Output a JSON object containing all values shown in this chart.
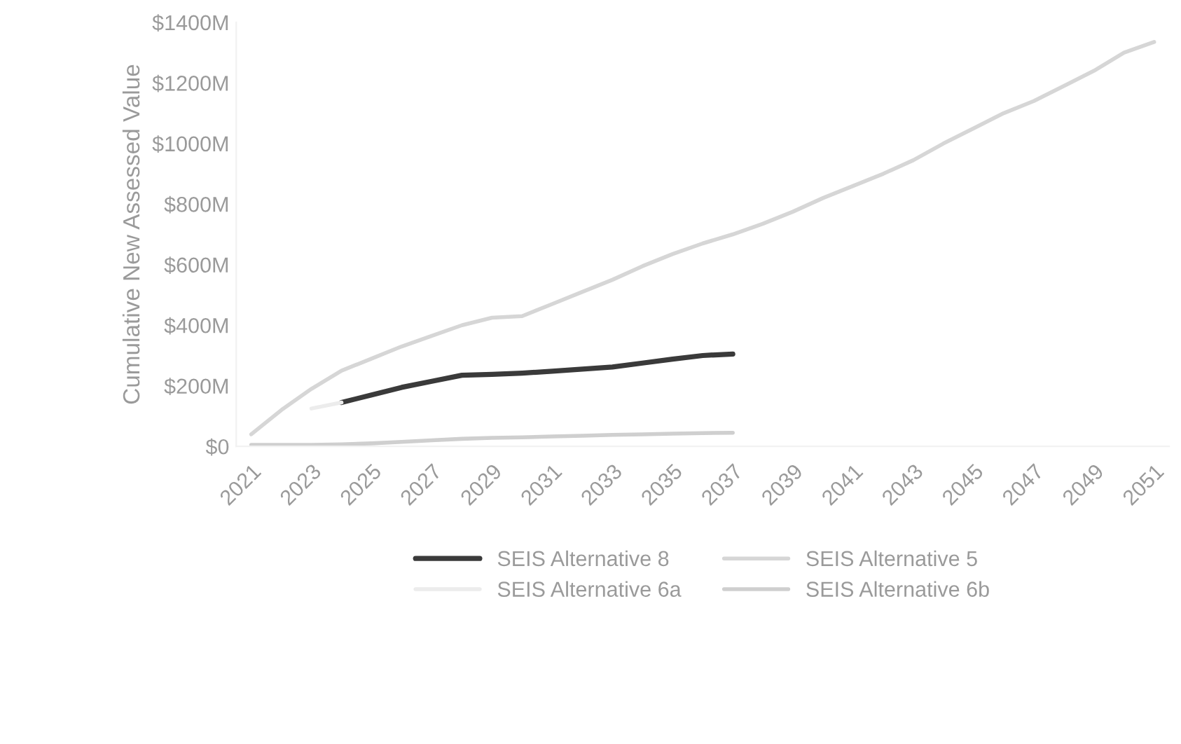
{
  "chart_data": {
    "type": "line",
    "ylabel": "Cumulative New Assessed Value",
    "categories": [
      "2021",
      null,
      "2023",
      null,
      "2025",
      null,
      "2027",
      null,
      "2029",
      null,
      "2031",
      null,
      "2033",
      null,
      "2035",
      null,
      "2037",
      null,
      "2039",
      null,
      "2041",
      null,
      "2043",
      null,
      "2045",
      null,
      "2047",
      null,
      "2049",
      null,
      "2051"
    ],
    "series": [
      {
        "name": "SEIS Alternative 8",
        "color": "#3a3a3a",
        "values": [
          null,
          null,
          null,
          145,
          170,
          195,
          215,
          235,
          238,
          242,
          248,
          255,
          262,
          275,
          288,
          300,
          305,
          null,
          null,
          null,
          null,
          null,
          null,
          null,
          null,
          null,
          null,
          null,
          null,
          null,
          null
        ]
      },
      {
        "name": "SEIS Alternative 5",
        "color": "#d6d6d6",
        "values": [
          40,
          120,
          190,
          250,
          290,
          330,
          365,
          400,
          425,
          430,
          470,
          510,
          550,
          595,
          635,
          670,
          700,
          735,
          775,
          820,
          860,
          900,
          945,
          1000,
          1050,
          1100,
          1140,
          1190,
          1240,
          1300,
          1335
        ]
      },
      {
        "name": "SEIS Alternative 6a",
        "color": "#ececec",
        "values": [
          null,
          null,
          125,
          145,
          null,
          null,
          null,
          null,
          null,
          null,
          null,
          null,
          null,
          null,
          null,
          null,
          null,
          null,
          null,
          null,
          null,
          null,
          null,
          null,
          null,
          null,
          null,
          null,
          null,
          null,
          null
        ]
      },
      {
        "name": "SEIS Alternative 6b",
        "color": "#cfcfcf",
        "values": [
          5,
          5,
          5,
          7,
          10,
          15,
          20,
          25,
          28,
          30,
          33,
          35,
          38,
          40,
          42,
          44,
          45,
          null,
          null,
          null,
          null,
          null,
          null,
          null,
          null,
          null,
          null,
          null,
          null,
          null,
          null
        ]
      }
    ],
    "ylim": [
      0,
      1400
    ],
    "yticks": [
      {
        "value": 0,
        "label": "$0"
      },
      {
        "value": 200,
        "label": "$200M"
      },
      {
        "value": 400,
        "label": "$400M"
      },
      {
        "value": 600,
        "label": "$600M"
      },
      {
        "value": 800,
        "label": "$800M"
      },
      {
        "value": 1000,
        "label": "$1000M"
      },
      {
        "value": 1200,
        "label": "$1200M"
      },
      {
        "value": 1400,
        "label": "$1400M"
      }
    ],
    "grid": false,
    "legend": "bottom",
    "marker": "none",
    "line_style": "solid"
  }
}
